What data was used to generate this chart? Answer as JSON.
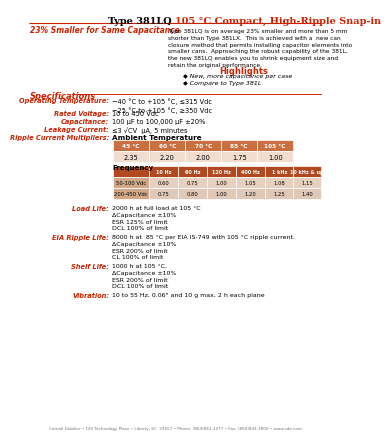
{
  "title_black": "Type 381LQ ",
  "title_red": "105 °C Compact, High-Ripple Snap-in",
  "subtitle": "23% Smaller for Same Capacitance",
  "desc_text": "Type 381LQ is on average 23% smaller and more than 5 mm\nshorter than Type 381LX.  This is achieved with a  new can\nclosure method that permits installing capacitor elements into\nsmaller cans.  Approaching the robust capability of the 381L,\nthe new 381LQ enables you to shrink equipment size and\nretain the original performance.",
  "highlights_title": "Highlights",
  "highlights": [
    "New, more capacitance per case",
    "Compare to Type 381L"
  ],
  "spec_title": "Specifications",
  "specs": [
    [
      "Operating Temperature:",
      "−40 °C to +105 °C, ≤315 Vdc\n−25 °C to +105 °C, ≥350 Vdc"
    ],
    [
      "Rated Voltage:",
      "10 to 450 Vdc"
    ],
    [
      "Capacitance:",
      "100 μF to 100,000 μF ±20%"
    ],
    [
      "Leakage Current:",
      "≤3 √CV  μA, 5 minutes"
    ],
    [
      "Ripple Current Multipliers:",
      "Ambient Temperature"
    ]
  ],
  "ambient_headers": [
    "45 °C",
    "60 °C",
    "70 °C",
    "85 °C",
    "105 °C"
  ],
  "ambient_values": [
    "2.35",
    "2.20",
    "2.00",
    "1.75",
    "1.00"
  ],
  "freq_label": "Frequency",
  "freq_headers": [
    "10 Hz",
    "60 Hz",
    "120 Hz",
    "400 Hz",
    "1 kHz",
    "10 kHz & up"
  ],
  "freq_rows": [
    [
      "50-100 Vdc",
      "0.60",
      "0.75",
      "1.00",
      "1.05",
      "1.08",
      "1.15"
    ],
    [
      "200-450 Vdc",
      "0.75",
      "0.80",
      "1.00",
      "1.20",
      "1.25",
      "1.40"
    ]
  ],
  "load_life_label": "Load Life:",
  "load_life_text": "2000 h at full load at 105 °C\nΔCapacitance ±10%\nESR 125% of limit\nDCL 100% of limit",
  "eia_label": "EIA Ripple Life:",
  "eia_text": "8000 h at  85 °C per EIA IS-749 with 105 °C ripple current.\nΔCapacitance ±10%\nESR 200% of limit\nCL 100% of limit",
  "shelf_label": "Shelf Life:",
  "shelf_text": "1000 h at 105 °C,\nΔCapacitance ±10%\nESR 200% of limit\nDCL 100% of limit",
  "vib_label": "Vibration:",
  "vib_text": "10 to 55 Hz, 0.06\" and 10 g max, 2 h each plane",
  "footer": "Cornell Dubilier • 140 Technology Place • Liberty, SC  29657 • Phone: (864)843-2277 • Fax: (864)843-3800 • www.cde.com",
  "red_color": "#cc2200",
  "table_amb_hdr_bg": "#c87040",
  "table_amb_val_bg": "#f0ddd0",
  "table_freq_hdr_bg": "#b04820",
  "table_freq_row1_bg": "#e8d0c0",
  "table_freq_row2_bg": "#dfc8b8",
  "table_freq_lbl_bg": "#d0a888",
  "bg_color": "#ffffff"
}
